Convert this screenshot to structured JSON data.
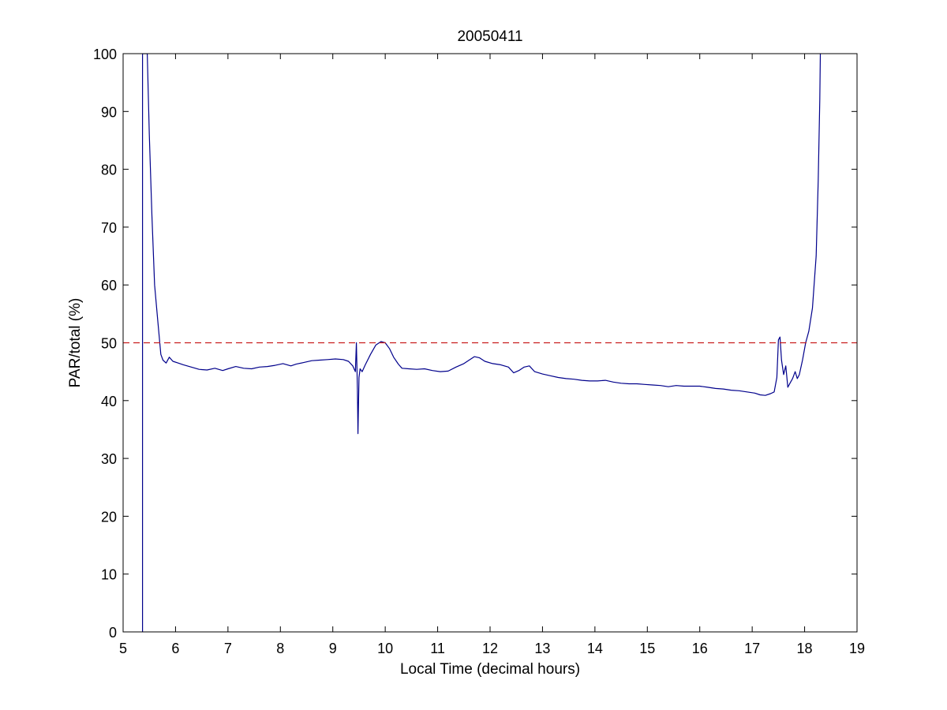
{
  "chart_data": {
    "type": "line",
    "title": "20050411",
    "xlabel": "Local Time (decimal hours)",
    "ylabel": "PAR/total (%)",
    "xlim": [
      5,
      19
    ],
    "ylim": [
      0,
      100
    ],
    "xticks": [
      5,
      6,
      7,
      8,
      9,
      10,
      11,
      12,
      13,
      14,
      15,
      16,
      17,
      18,
      19
    ],
    "yticks": [
      0,
      10,
      20,
      30,
      40,
      50,
      60,
      70,
      80,
      90,
      100
    ],
    "grid": false,
    "series": [
      {
        "color": "#00008b",
        "style": "solid",
        "x": [
          5.37,
          5.37,
          5.38,
          5.42,
          5.46,
          5.5,
          5.55,
          5.6,
          5.66,
          5.72,
          5.76,
          5.82,
          5.88,
          5.95,
          6.05,
          6.15,
          6.3,
          6.45,
          6.6,
          6.75,
          6.9,
          7.0,
          7.15,
          7.3,
          7.45,
          7.6,
          7.75,
          7.9,
          8.05,
          8.2,
          8.3,
          8.45,
          8.6,
          8.75,
          8.9,
          9.05,
          9.2,
          9.3,
          9.38,
          9.43,
          9.45,
          9.47,
          9.48,
          9.5,
          9.52,
          9.56,
          9.62,
          9.72,
          9.82,
          9.92,
          10.0,
          10.08,
          10.16,
          10.25,
          10.32,
          10.45,
          10.6,
          10.75,
          10.9,
          11.05,
          11.2,
          11.35,
          11.5,
          11.6,
          11.7,
          11.8,
          11.9,
          12.05,
          12.2,
          12.35,
          12.45,
          12.55,
          12.65,
          12.75,
          12.85,
          13.0,
          13.15,
          13.3,
          13.45,
          13.6,
          13.75,
          13.9,
          14.05,
          14.2,
          14.35,
          14.5,
          14.65,
          14.8,
          14.95,
          15.1,
          15.25,
          15.4,
          15.55,
          15.7,
          15.85,
          16.0,
          16.15,
          16.3,
          16.45,
          16.6,
          16.75,
          16.9,
          17.05,
          17.15,
          17.25,
          17.35,
          17.42,
          17.47,
          17.5,
          17.53,
          17.56,
          17.6,
          17.64,
          17.68,
          17.72,
          17.77,
          17.82,
          17.86,
          17.9,
          17.96,
          18.02,
          18.08,
          18.15,
          18.22,
          18.26,
          18.29,
          18.3
        ],
        "y": [
          0,
          100,
          100,
          100,
          100,
          86,
          72,
          60,
          54,
          48,
          47,
          46.5,
          47.5,
          46.8,
          46.5,
          46.2,
          45.8,
          45.4,
          45.3,
          45.6,
          45.2,
          45.5,
          45.9,
          45.6,
          45.5,
          45.8,
          45.9,
          46.1,
          46.4,
          46.0,
          46.3,
          46.6,
          46.9,
          47.0,
          47.1,
          47.2,
          47.1,
          46.8,
          46.0,
          45.0,
          50.0,
          42.0,
          34.3,
          44.0,
          45.5,
          45.0,
          46.2,
          48.0,
          49.6,
          50.2,
          50.0,
          49.0,
          47.5,
          46.3,
          45.6,
          45.5,
          45.4,
          45.5,
          45.2,
          45.0,
          45.1,
          45.8,
          46.4,
          47.0,
          47.6,
          47.4,
          46.8,
          46.4,
          46.2,
          45.8,
          44.8,
          45.2,
          45.8,
          46.0,
          45.0,
          44.6,
          44.3,
          44.0,
          43.8,
          43.7,
          43.5,
          43.4,
          43.4,
          43.5,
          43.2,
          43.0,
          42.9,
          42.9,
          42.8,
          42.7,
          42.6,
          42.4,
          42.6,
          42.5,
          42.5,
          42.5,
          42.3,
          42.1,
          42.0,
          41.8,
          41.7,
          41.5,
          41.3,
          41.0,
          40.9,
          41.2,
          41.5,
          44.0,
          50.5,
          51.0,
          47.0,
          44.5,
          46.0,
          42.3,
          43.0,
          43.8,
          45.0,
          43.8,
          44.5,
          47.0,
          50.0,
          52.0,
          56.0,
          65.0,
          78.0,
          92.0,
          100
        ]
      },
      {
        "color": "#c81e1e",
        "style": "dashed",
        "x": [
          5,
          19
        ],
        "y": [
          50,
          50
        ]
      }
    ]
  }
}
